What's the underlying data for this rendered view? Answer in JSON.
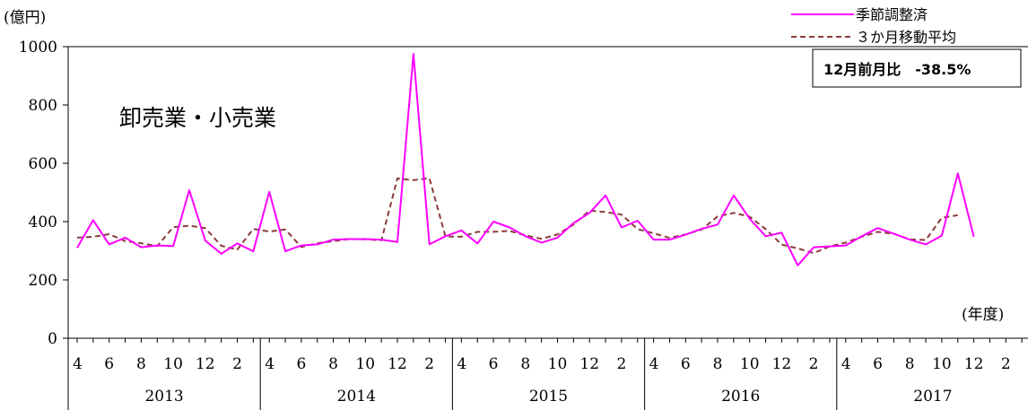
{
  "chart_data": {
    "type": "line",
    "y_unit_label": "(億円)",
    "x_unit_label": "(年度)",
    "title": "卸売業・小売業",
    "ylim": [
      0,
      1000
    ],
    "y_ticks": [
      0,
      200,
      400,
      600,
      800,
      1000
    ],
    "month_tick_labels": [
      "4",
      "6",
      "8",
      "10",
      "12",
      "2"
    ],
    "fiscal_years": [
      "2013",
      "2014",
      "2015",
      "2016",
      "2017"
    ],
    "annotation": "12月前月比　-38.5%",
    "series": [
      {
        "name": "季節調整済",
        "color": "#ff00ff",
        "style": "solid",
        "values": [
          310,
          405,
          322,
          345,
          312,
          318,
          316,
          508,
          335,
          290,
          325,
          298,
          502,
          298,
          318,
          322,
          338,
          340,
          340,
          338,
          330,
          975,
          322,
          350,
          370,
          325,
          400,
          380,
          350,
          328,
          345,
          395,
          430,
          490,
          380,
          403,
          338,
          338,
          355,
          375,
          390,
          490,
          410,
          350,
          362,
          250,
          312,
          315,
          318,
          350,
          378,
          358,
          338,
          322,
          352,
          565,
          348
        ]
      },
      {
        "name": "３か月移動平均",
        "color": "#8b3a3a",
        "style": "dashed",
        "values": [
          345,
          348,
          357,
          333,
          326,
          316,
          381,
          386,
          378,
          317,
          304,
          375,
          366,
          373,
          313,
          326,
          333,
          340,
          339,
          336,
          548,
          542,
          549,
          349,
          348,
          365,
          365,
          368,
          353,
          341,
          356,
          390,
          438,
          433,
          424,
          374,
          360,
          344,
          356,
          373,
          418,
          430,
          417,
          374,
          321,
          308,
          292,
          315,
          328,
          348,
          365,
          358,
          339,
          337,
          413,
          422
        ]
      }
    ]
  }
}
